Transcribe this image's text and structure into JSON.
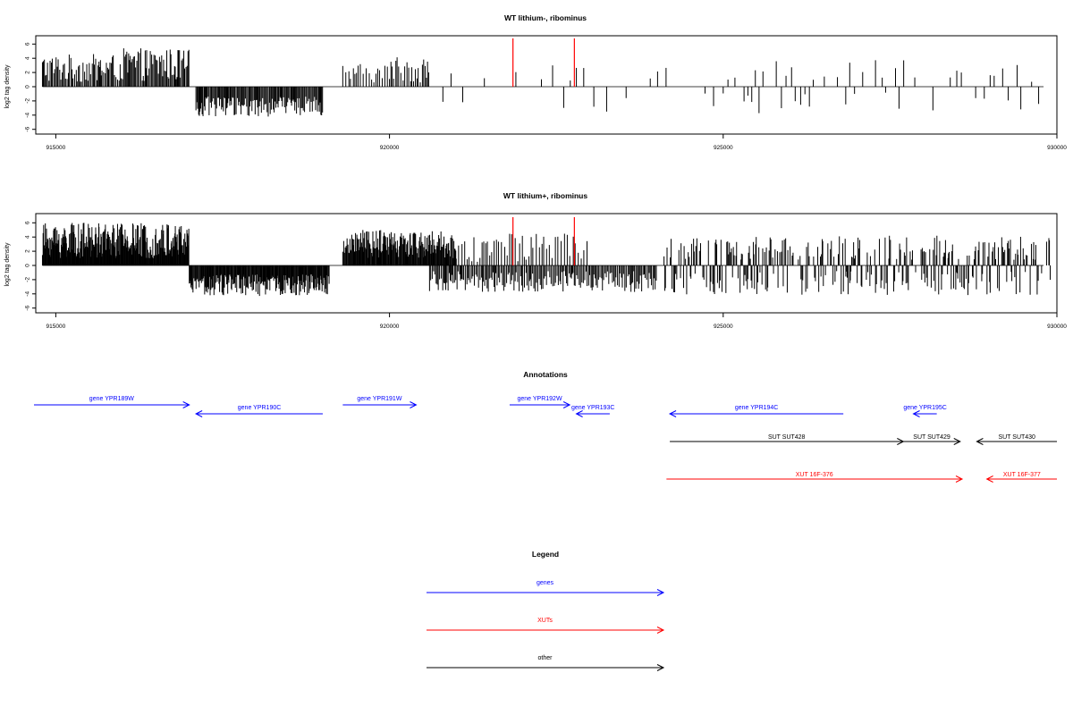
{
  "chart_data": [
    {
      "type": "bar",
      "title": "WT lithium-, ribominus",
      "xlabel": "",
      "ylabel": "log2 tag density",
      "xlim": [
        914700,
        930000
      ],
      "ylim": [
        -6.5,
        7
      ],
      "x_ticks": [
        915000,
        920000,
        925000,
        930000
      ],
      "y_ticks": [
        -6,
        -4,
        -2,
        0,
        2,
        4,
        6
      ],
      "x_tick_labels": [
        "915000",
        "920000",
        "925000",
        "930000"
      ],
      "y_tick_labels": [
        "-6",
        "-4",
        "-2",
        "0",
        "2",
        "4",
        "6"
      ],
      "color": "#000000",
      "highlight_color": "#ff0000",
      "highlight_bars": [
        {
          "x": 921850,
          "y": 6.8
        },
        {
          "x": 922770,
          "y": 6.8
        }
      ],
      "regions": [
        {
          "start": 914800,
          "end": 916000,
          "sign": 1,
          "min": 0.6,
          "max": 4.6,
          "step": 18
        },
        {
          "start": 916000,
          "end": 917000,
          "sign": 1,
          "min": 0.8,
          "max": 5.4,
          "step": 16
        },
        {
          "start": 917100,
          "end": 919000,
          "sign": -1,
          "min": 1.4,
          "max": 4.2,
          "step": 14
        },
        {
          "start": 919300,
          "end": 920000,
          "sign": 1,
          "min": 0.6,
          "max": 3.2,
          "step": 35
        },
        {
          "start": 920000,
          "end": 920600,
          "sign": 1,
          "min": 0.6,
          "max": 4.4,
          "step": 25
        },
        {
          "start": 920800,
          "end": 922800,
          "sign": 0,
          "min": 0.5,
          "max": 3.0,
          "step": 140
        },
        {
          "start": 922800,
          "end": 925000,
          "sign": 0,
          "min": 0.8,
          "max": 3.6,
          "step": 110
        },
        {
          "start": 925000,
          "end": 929000,
          "sign": 0,
          "min": 0.8,
          "max": 3.8,
          "step": 75
        },
        {
          "start": 929000,
          "end": 929800,
          "sign": 0,
          "min": 0.6,
          "max": 3.2,
          "step": 90
        }
      ]
    },
    {
      "type": "bar",
      "title": "WT lithium+, ribominus",
      "xlabel": "",
      "ylabel": "log2 tag density",
      "xlim": [
        914700,
        930000
      ],
      "ylim": [
        -6.5,
        7
      ],
      "x_ticks": [
        915000,
        920000,
        925000,
        930000
      ],
      "y_ticks": [
        -6,
        -4,
        -2,
        0,
        2,
        4,
        6
      ],
      "x_tick_labels": [
        "915000",
        "920000",
        "925000",
        "930000"
      ],
      "y_tick_labels": [
        "-6",
        "-4",
        "-2",
        "0",
        "2",
        "4",
        "6"
      ],
      "color": "#000000",
      "highlight_color": "#ff0000",
      "highlight_bars": [
        {
          "x": 921850,
          "y": 6.8
        },
        {
          "x": 922770,
          "y": 6.8
        }
      ],
      "regions": [
        {
          "start": 914800,
          "end": 917000,
          "sign": 1,
          "min": 1.0,
          "max": 6.0,
          "step": 8
        },
        {
          "start": 917000,
          "end": 919100,
          "sign": -1,
          "min": 1.2,
          "max": 4.3,
          "step": 10
        },
        {
          "start": 919300,
          "end": 921000,
          "sign": 1,
          "min": 1.0,
          "max": 5.0,
          "step": 10
        },
        {
          "start": 920600,
          "end": 924000,
          "sign": -1,
          "min": 0.8,
          "max": 3.8,
          "step": 18
        },
        {
          "start": 921000,
          "end": 923000,
          "sign": 1,
          "min": 0.5,
          "max": 4.6,
          "step": 40
        },
        {
          "start": 924100,
          "end": 929900,
          "sign": 0,
          "min": 0.8,
          "max": 4.2,
          "step": 12
        }
      ]
    }
  ],
  "annotations": {
    "title": "Annotations",
    "genes": [
      {
        "label": "gene YPR189W",
        "start": 914350,
        "end": 917000,
        "strand": "+",
        "row": 0
      },
      {
        "label": "gene YPR190C",
        "start": 917100,
        "end": 919000,
        "strand": "-",
        "row": 1
      },
      {
        "label": "gene YPR191W",
        "start": 919300,
        "end": 920400,
        "strand": "+",
        "row": 0
      },
      {
        "label": "gene YPR192W",
        "start": 921800,
        "end": 922700,
        "strand": "+",
        "row": 0
      },
      {
        "label": "gene YPR193C",
        "start": 922800,
        "end": 923300,
        "strand": "-",
        "row": 1
      },
      {
        "label": "gene YPR194C",
        "start": 924200,
        "end": 926800,
        "strand": "-",
        "row": 1
      },
      {
        "label": "gene YPR195C",
        "start": 927850,
        "end": 928200,
        "strand": "-",
        "row": 1
      }
    ],
    "suts": [
      {
        "label": "SUT SUT428",
        "start": 924200,
        "end": 927700,
        "strand": "+"
      },
      {
        "label": "SUT SUT429",
        "start": 927700,
        "end": 928550,
        "strand": "+"
      },
      {
        "label": "SUT SUT430",
        "start": 928800,
        "end": 930500,
        "strand": "-"
      }
    ],
    "xuts": [
      {
        "label": "XUT 16F-376",
        "start": 924150,
        "end": 928580,
        "strand": "+"
      },
      {
        "label": "XUT 16F-377",
        "start": 928950,
        "end": 930500,
        "strand": "-"
      }
    ]
  },
  "legend": {
    "title": "Legend",
    "items": [
      {
        "label": "genes",
        "color": "#0000ff"
      },
      {
        "label": "XUTs",
        "color": "#ff0000"
      },
      {
        "label": "other",
        "color": "#000000"
      }
    ]
  },
  "colors": {
    "gene": "#0000ff",
    "xut": "#ff0000",
    "other": "#000000"
  }
}
